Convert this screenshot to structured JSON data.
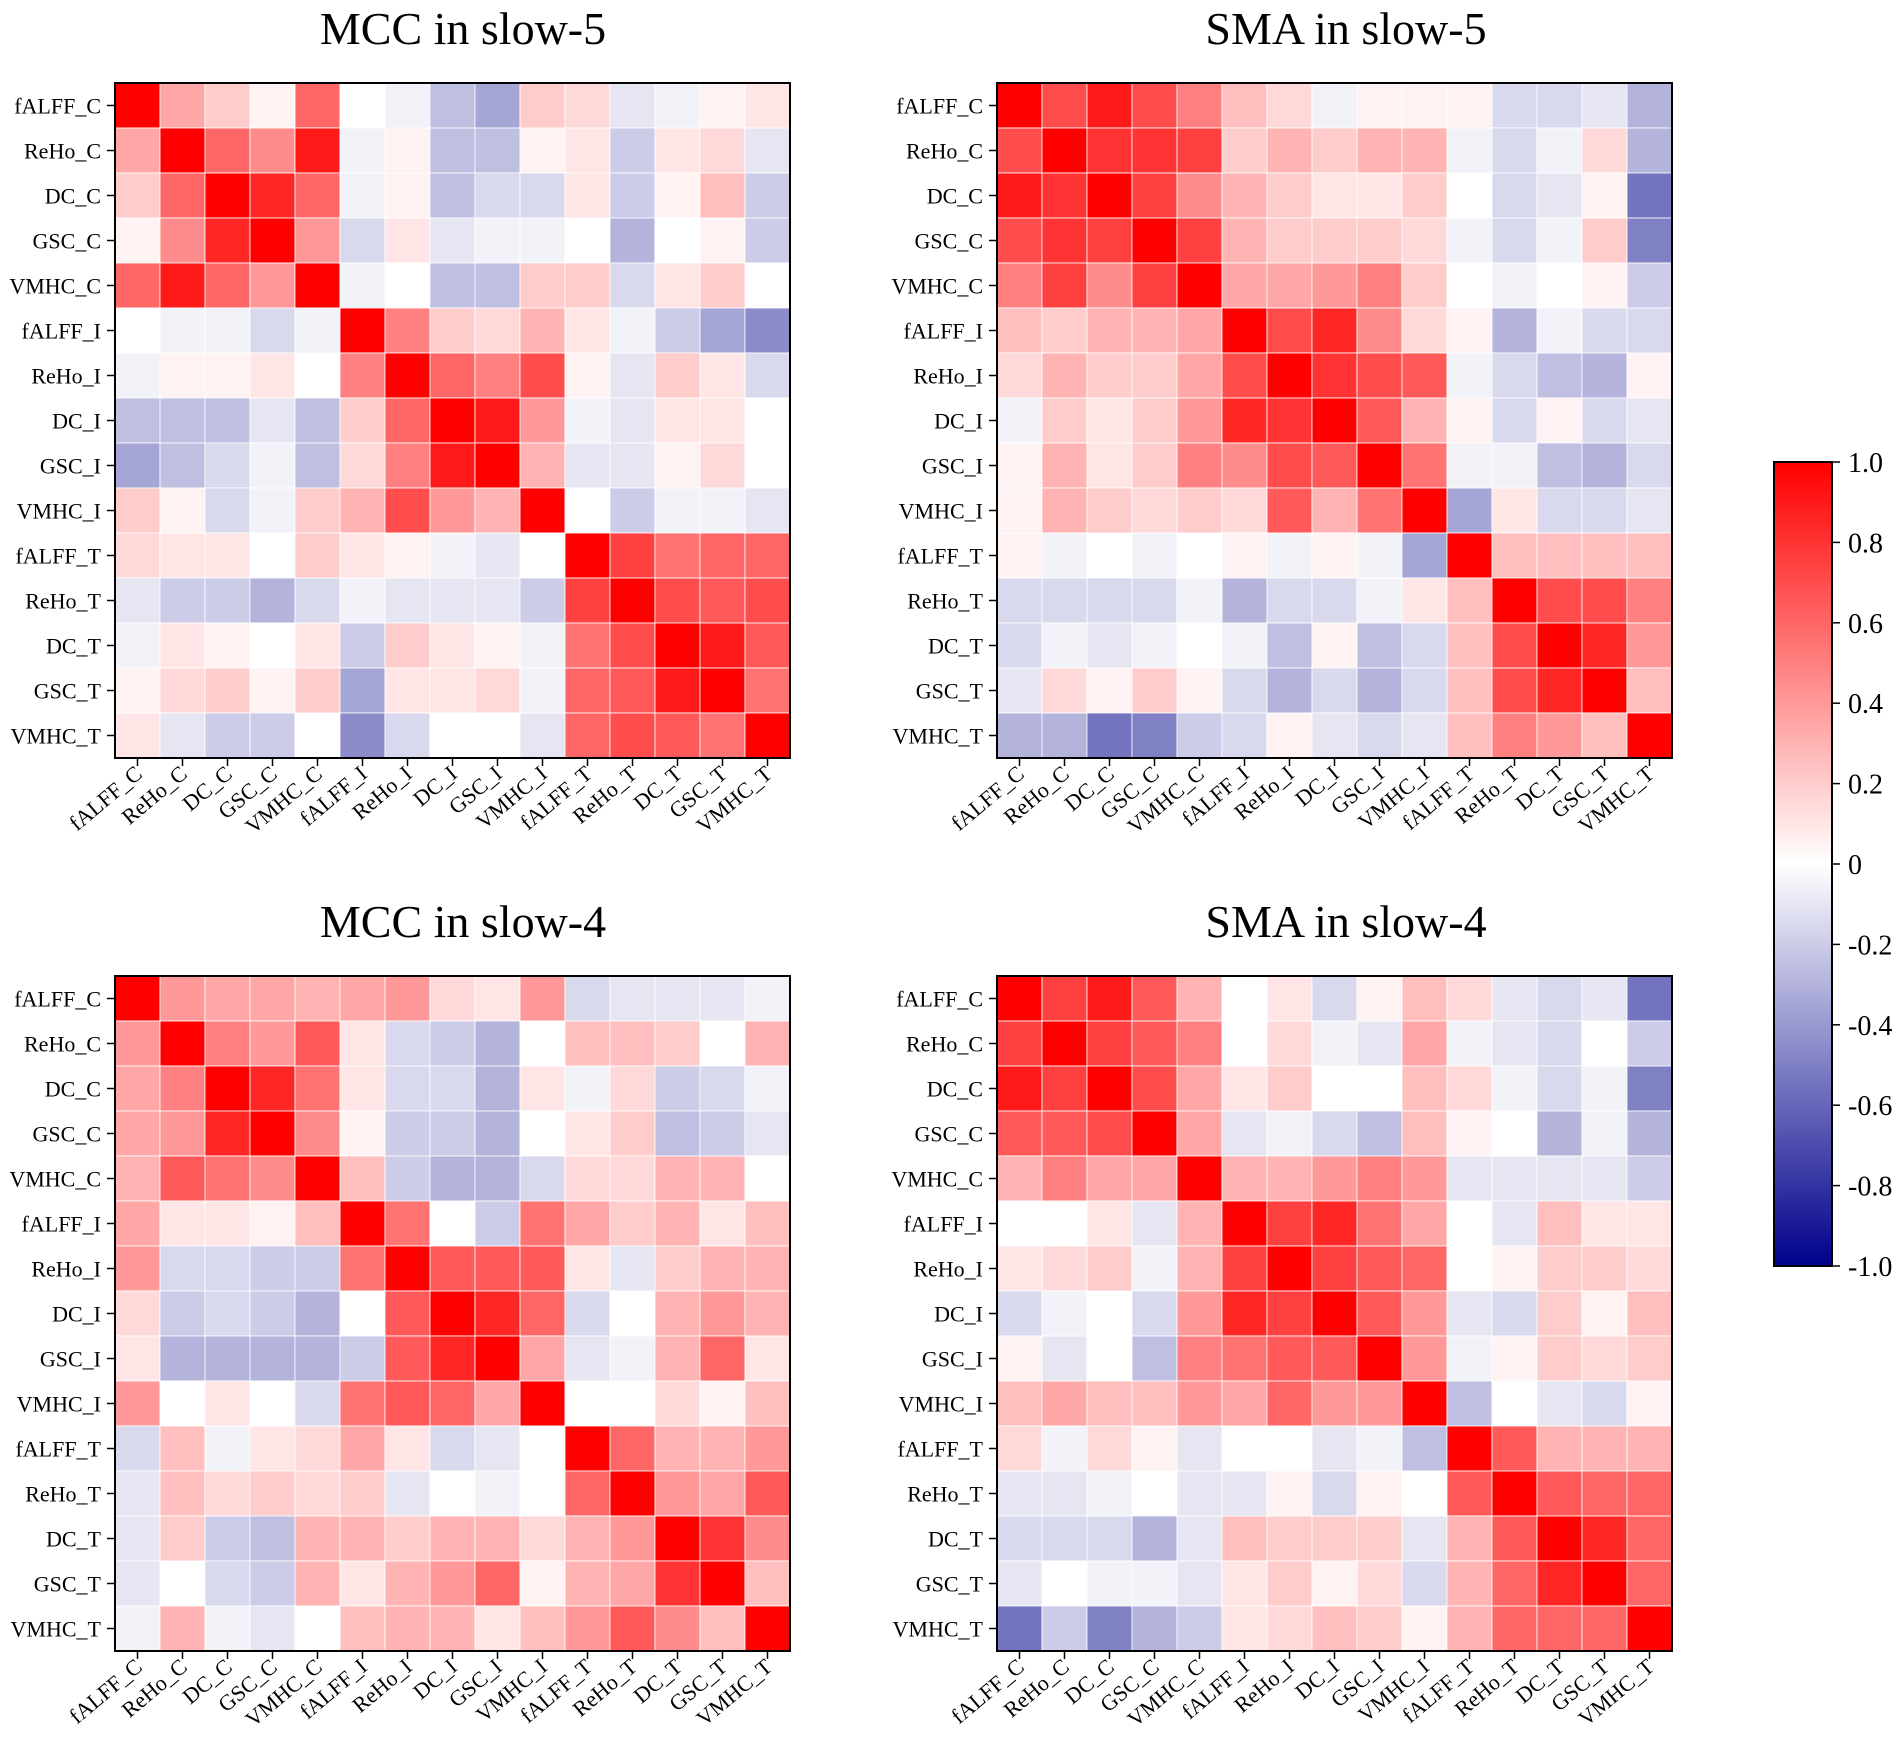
{
  "chart_data": {
    "type": "heatmap",
    "labels": [
      "fALFF_C",
      "ReHo_C",
      "DC_C",
      "GSC_C",
      "VMHC_C",
      "fALFF_I",
      "ReHo_I",
      "DC_I",
      "GSC_I",
      "VMHC_I",
      "fALFF_T",
      "ReHo_T",
      "DC_T",
      "GSC_T",
      "VMHC_T"
    ],
    "colorbar": {
      "range": [
        -1.0,
        1.0
      ],
      "ticks": [
        "1.0",
        "0.8",
        "0.6",
        "0.4",
        "0.2",
        "0",
        "-0.2",
        "-0.4",
        "-0.6",
        "-0.8",
        "-1.0"
      ],
      "colors": {
        "neg": "#00008b",
        "mid": "#ffffff",
        "pos": "#ff0000"
      }
    },
    "panels": [
      {
        "title": "MCC in slow-5",
        "matrix": [
          [
            1,
            0.35,
            0.2,
            0.05,
            0.6,
            0,
            -0.05,
            -0.25,
            -0.35,
            0.2,
            0.15,
            -0.1,
            -0.05,
            0.05,
            0.1
          ],
          [
            0.35,
            1,
            0.6,
            0.45,
            0.9,
            -0.05,
            0.05,
            -0.25,
            -0.25,
            0.05,
            0.1,
            -0.2,
            0.1,
            0.15,
            -0.1
          ],
          [
            0.2,
            0.6,
            1,
            0.85,
            0.6,
            -0.05,
            0.05,
            -0.25,
            -0.15,
            -0.15,
            0.1,
            -0.2,
            0.05,
            0.25,
            -0.2
          ],
          [
            0.05,
            0.45,
            0.85,
            1,
            0.4,
            -0.15,
            0.1,
            -0.1,
            -0.05,
            -0.05,
            0,
            -0.3,
            0,
            0.05,
            -0.2
          ],
          [
            0.6,
            0.9,
            0.6,
            0.4,
            1,
            -0.05,
            0,
            -0.25,
            -0.25,
            0.2,
            0.2,
            -0.15,
            0.1,
            0.2,
            0
          ],
          [
            0,
            -0.05,
            -0.05,
            -0.15,
            -0.05,
            1,
            0.5,
            0.2,
            0.15,
            0.3,
            0.1,
            -0.05,
            -0.2,
            -0.35,
            -0.45
          ],
          [
            -0.05,
            0.05,
            0.05,
            0.1,
            0,
            0.5,
            1,
            0.6,
            0.5,
            0.7,
            0.05,
            -0.1,
            0.2,
            0.1,
            -0.15
          ],
          [
            -0.25,
            -0.25,
            -0.25,
            -0.1,
            -0.25,
            0.2,
            0.6,
            1,
            0.9,
            0.4,
            -0.05,
            -0.1,
            0.1,
            0.1,
            0
          ],
          [
            -0.35,
            -0.25,
            -0.15,
            -0.05,
            -0.25,
            0.15,
            0.5,
            0.9,
            1,
            0.3,
            -0.1,
            -0.1,
            0.05,
            0.15,
            0
          ],
          [
            0.2,
            0.05,
            -0.15,
            -0.05,
            0.2,
            0.3,
            0.7,
            0.4,
            0.3,
            1,
            0,
            -0.2,
            -0.05,
            -0.05,
            -0.1
          ],
          [
            0.15,
            0.1,
            0.1,
            0,
            0.2,
            0.1,
            0.05,
            -0.05,
            -0.1,
            0,
            1,
            0.75,
            0.55,
            0.6,
            0.6
          ],
          [
            -0.1,
            -0.2,
            -0.2,
            -0.3,
            -0.15,
            -0.05,
            -0.1,
            -0.1,
            -0.1,
            -0.2,
            0.75,
            1,
            0.7,
            0.65,
            0.7
          ],
          [
            -0.05,
            0.1,
            0.05,
            0,
            0.1,
            -0.2,
            0.2,
            0.1,
            0.05,
            -0.05,
            0.55,
            0.7,
            1,
            0.9,
            0.65
          ],
          [
            0.05,
            0.15,
            0.2,
            0.05,
            0.2,
            -0.35,
            0.1,
            0.1,
            0.15,
            -0.05,
            0.6,
            0.65,
            0.9,
            1,
            0.55
          ],
          [
            0.1,
            -0.1,
            -0.2,
            -0.2,
            0,
            -0.45,
            -0.15,
            0,
            0,
            -0.1,
            0.6,
            0.7,
            0.65,
            0.55,
            1
          ]
        ]
      },
      {
        "title": "SMA in slow-5",
        "matrix": [
          [
            1,
            0.7,
            0.9,
            0.7,
            0.5,
            0.25,
            0.15,
            -0.05,
            0.05,
            0.05,
            0.05,
            -0.15,
            -0.15,
            -0.1,
            -0.3
          ],
          [
            0.7,
            1,
            0.8,
            0.8,
            0.75,
            0.2,
            0.3,
            0.2,
            0.3,
            0.3,
            -0.05,
            -0.15,
            -0.05,
            0.15,
            -0.3
          ],
          [
            0.9,
            0.8,
            1,
            0.75,
            0.45,
            0.3,
            0.2,
            0.1,
            0.1,
            0.2,
            0,
            -0.15,
            -0.1,
            0.05,
            -0.55
          ],
          [
            0.7,
            0.8,
            0.75,
            1,
            0.75,
            0.3,
            0.2,
            0.2,
            0.2,
            0.15,
            -0.05,
            -0.15,
            -0.05,
            0.2,
            -0.5
          ],
          [
            0.5,
            0.75,
            0.45,
            0.75,
            1,
            0.35,
            0.35,
            0.4,
            0.5,
            0.2,
            0,
            -0.05,
            0,
            0.05,
            -0.2
          ],
          [
            0.25,
            0.2,
            0.3,
            0.3,
            0.35,
            1,
            0.7,
            0.85,
            0.45,
            0.15,
            0.05,
            -0.3,
            -0.05,
            -0.15,
            -0.15
          ],
          [
            0.15,
            0.3,
            0.2,
            0.2,
            0.35,
            0.7,
            1,
            0.8,
            0.7,
            0.65,
            -0.05,
            -0.15,
            -0.25,
            -0.3,
            0.05
          ],
          [
            -0.05,
            0.2,
            0.1,
            0.2,
            0.4,
            0.85,
            0.8,
            1,
            0.65,
            0.3,
            0.05,
            -0.15,
            0.05,
            -0.15,
            -0.1
          ],
          [
            0.05,
            0.3,
            0.1,
            0.2,
            0.5,
            0.45,
            0.7,
            0.65,
            1,
            0.55,
            -0.05,
            -0.05,
            -0.25,
            -0.3,
            -0.15
          ],
          [
            0.05,
            0.3,
            0.2,
            0.15,
            0.2,
            0.15,
            0.65,
            0.3,
            0.55,
            1,
            -0.35,
            0.1,
            -0.15,
            -0.15,
            -0.1
          ],
          [
            0.05,
            -0.05,
            0,
            -0.05,
            0,
            0.05,
            -0.05,
            0.05,
            -0.05,
            -0.35,
            1,
            0.25,
            0.25,
            0.25,
            0.25
          ],
          [
            -0.15,
            -0.15,
            -0.15,
            -0.15,
            -0.05,
            -0.3,
            -0.15,
            -0.15,
            -0.05,
            0.1,
            0.25,
            1,
            0.7,
            0.7,
            0.5
          ],
          [
            -0.15,
            -0.05,
            -0.1,
            -0.05,
            0,
            -0.05,
            -0.25,
            0.05,
            -0.25,
            -0.15,
            0.25,
            0.7,
            1,
            0.85,
            0.4
          ],
          [
            -0.1,
            0.15,
            0.05,
            0.2,
            0.05,
            -0.15,
            -0.3,
            -0.15,
            -0.3,
            -0.15,
            0.25,
            0.7,
            0.85,
            1,
            0.25
          ],
          [
            -0.3,
            -0.3,
            -0.55,
            -0.5,
            -0.2,
            -0.15,
            0.05,
            -0.1,
            -0.15,
            -0.1,
            0.25,
            0.5,
            0.4,
            0.25,
            1
          ]
        ]
      },
      {
        "title": "MCC in slow-4",
        "matrix": [
          [
            1,
            0.4,
            0.35,
            0.35,
            0.3,
            0.35,
            0.4,
            0.15,
            0.1,
            0.4,
            -0.15,
            -0.1,
            -0.1,
            -0.1,
            -0.05
          ],
          [
            0.4,
            1,
            0.5,
            0.4,
            0.65,
            0.1,
            -0.15,
            -0.2,
            -0.3,
            0,
            0.25,
            0.25,
            0.2,
            0,
            0.3
          ],
          [
            0.35,
            0.5,
            1,
            0.85,
            0.55,
            0.1,
            -0.15,
            -0.15,
            -0.3,
            0.1,
            -0.05,
            0.15,
            -0.2,
            -0.15,
            -0.05
          ],
          [
            0.35,
            0.4,
            0.85,
            1,
            0.45,
            0.05,
            -0.2,
            -0.2,
            -0.3,
            0,
            0.1,
            0.2,
            -0.25,
            -0.2,
            -0.1
          ],
          [
            0.3,
            0.65,
            0.55,
            0.45,
            1,
            0.25,
            -0.2,
            -0.3,
            -0.3,
            -0.15,
            0.15,
            0.15,
            0.3,
            0.3,
            0
          ],
          [
            0.35,
            0.1,
            0.1,
            0.05,
            0.25,
            1,
            0.55,
            0,
            -0.2,
            0.55,
            0.35,
            0.2,
            0.3,
            0.1,
            0.25
          ],
          [
            0.4,
            -0.15,
            -0.15,
            -0.2,
            -0.2,
            0.55,
            1,
            0.65,
            0.65,
            0.65,
            0.1,
            -0.1,
            0.2,
            0.3,
            0.3
          ],
          [
            0.15,
            -0.2,
            -0.15,
            -0.2,
            -0.3,
            0,
            0.65,
            1,
            0.85,
            0.6,
            -0.15,
            0,
            0.3,
            0.4,
            0.3
          ],
          [
            0.1,
            -0.3,
            -0.3,
            -0.3,
            -0.3,
            -0.2,
            0.65,
            0.85,
            1,
            0.35,
            -0.1,
            -0.05,
            0.3,
            0.6,
            0.1
          ],
          [
            0.4,
            0,
            0.1,
            0,
            -0.15,
            0.55,
            0.65,
            0.6,
            0.35,
            1,
            0,
            0,
            0.15,
            0.05,
            0.25
          ],
          [
            -0.15,
            0.25,
            -0.05,
            0.1,
            0.15,
            0.35,
            0.1,
            -0.15,
            -0.1,
            0,
            1,
            0.6,
            0.3,
            0.3,
            0.4
          ],
          [
            -0.1,
            0.25,
            0.15,
            0.2,
            0.15,
            0.2,
            -0.1,
            0,
            -0.05,
            0,
            0.6,
            1,
            0.4,
            0.35,
            0.65
          ],
          [
            -0.1,
            0.2,
            -0.2,
            -0.25,
            0.3,
            0.3,
            0.2,
            0.3,
            0.3,
            0.15,
            0.3,
            0.4,
            1,
            0.8,
            0.45
          ],
          [
            -0.1,
            0,
            -0.15,
            -0.2,
            0.3,
            0.1,
            0.3,
            0.4,
            0.6,
            0.05,
            0.3,
            0.35,
            0.8,
            1,
            0.25
          ],
          [
            -0.05,
            0.3,
            -0.05,
            -0.1,
            0,
            0.25,
            0.3,
            0.3,
            0.1,
            0.25,
            0.4,
            0.65,
            0.45,
            0.25,
            1
          ]
        ]
      },
      {
        "title": "SMA in slow-4",
        "matrix": [
          [
            1,
            0.75,
            0.9,
            0.65,
            0.3,
            0,
            0.1,
            -0.15,
            0.05,
            0.25,
            0.15,
            -0.1,
            -0.15,
            -0.1,
            -0.55
          ],
          [
            0.75,
            1,
            0.75,
            0.65,
            0.5,
            0,
            0.15,
            -0.05,
            -0.1,
            0.35,
            -0.05,
            -0.1,
            -0.15,
            0,
            -0.2
          ],
          [
            0.9,
            0.75,
            1,
            0.7,
            0.35,
            0.1,
            0.2,
            0,
            0,
            0.25,
            0.15,
            -0.05,
            -0.15,
            -0.05,
            -0.5
          ],
          [
            0.65,
            0.65,
            0.7,
            1,
            0.35,
            -0.1,
            -0.05,
            -0.15,
            -0.25,
            0.25,
            0.05,
            0,
            -0.3,
            -0.05,
            -0.3
          ],
          [
            0.3,
            0.5,
            0.35,
            0.35,
            1,
            0.3,
            0.3,
            0.4,
            0.5,
            0.4,
            -0.1,
            -0.1,
            -0.1,
            -0.1,
            -0.2
          ],
          [
            0,
            0,
            0.1,
            -0.1,
            0.3,
            1,
            0.75,
            0.85,
            0.55,
            0.35,
            0,
            -0.1,
            0.25,
            0.1,
            0.1
          ],
          [
            0.1,
            0.15,
            0.2,
            -0.05,
            0.3,
            0.75,
            1,
            0.75,
            0.65,
            0.6,
            0,
            0.05,
            0.2,
            0.2,
            0.15
          ],
          [
            -0.15,
            -0.05,
            0,
            -0.15,
            0.4,
            0.85,
            0.75,
            1,
            0.65,
            0.4,
            -0.1,
            -0.15,
            0.2,
            0.05,
            0.25
          ],
          [
            0.05,
            -0.1,
            0,
            -0.25,
            0.5,
            0.55,
            0.65,
            0.65,
            1,
            0.4,
            -0.05,
            0.05,
            0.2,
            0.15,
            0.2
          ],
          [
            0.25,
            0.35,
            0.25,
            0.25,
            0.4,
            0.35,
            0.6,
            0.4,
            0.4,
            1,
            -0.25,
            0,
            -0.1,
            -0.15,
            0.05
          ],
          [
            0.15,
            -0.05,
            0.15,
            0.05,
            -0.1,
            0,
            0,
            -0.1,
            -0.05,
            -0.25,
            1,
            0.65,
            0.3,
            0.3,
            0.3
          ],
          [
            -0.1,
            -0.1,
            -0.05,
            0,
            -0.1,
            -0.1,
            0.05,
            -0.15,
            0.05,
            0,
            0.65,
            1,
            0.65,
            0.6,
            0.6
          ],
          [
            -0.15,
            -0.15,
            -0.15,
            -0.3,
            -0.1,
            0.25,
            0.2,
            0.2,
            0.2,
            -0.1,
            0.3,
            0.65,
            1,
            0.85,
            0.6
          ],
          [
            -0.1,
            0,
            -0.05,
            -0.05,
            -0.1,
            0.1,
            0.2,
            0.05,
            0.15,
            -0.15,
            0.3,
            0.6,
            0.85,
            1,
            0.6
          ],
          [
            -0.55,
            -0.2,
            -0.5,
            -0.3,
            -0.2,
            0.1,
            0.15,
            0.25,
            0.2,
            0.05,
            0.3,
            0.6,
            0.6,
            0.6,
            1
          ]
        ]
      }
    ]
  }
}
